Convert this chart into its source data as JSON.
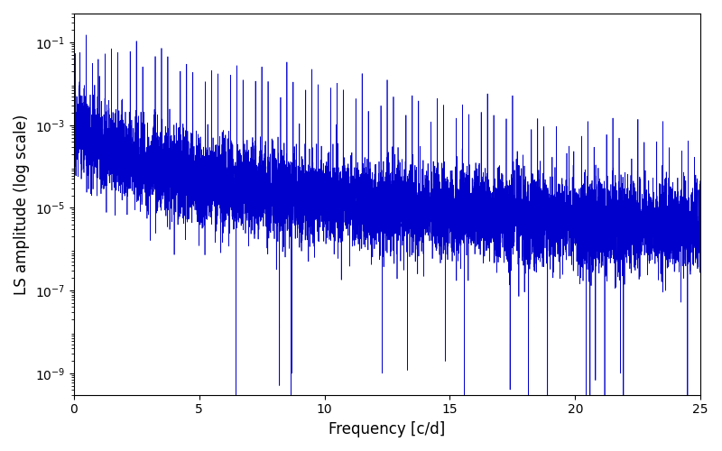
{
  "title": "",
  "xlabel": "Frequency [c/d]",
  "ylabel": "LS amplitude (log scale)",
  "xlim": [
    0,
    25
  ],
  "ylim": [
    3e-10,
    0.5
  ],
  "line_color": "#0000CC",
  "line_width": 0.5,
  "yscale": "log",
  "figsize": [
    8.0,
    5.0
  ],
  "dpi": 100,
  "seed": 12345,
  "n_points": 10000,
  "freq_max": 25.0,
  "base_amplitude_low": 0.0003,
  "base_amplitude_high": 3e-06,
  "noise_sigma": 1.2
}
